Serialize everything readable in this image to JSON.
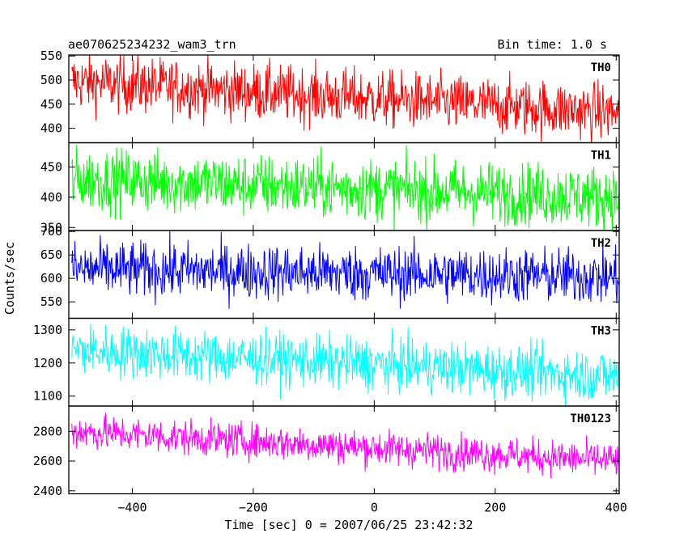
{
  "header": {
    "title": "ae070625234232_wam3_trn",
    "bin_time": "Bin time: 1.0 s"
  },
  "chart_data": {
    "type": "line",
    "xlabel": "Time [sec] 0 = 2007/06/25 23:42:32",
    "ylabel": "Counts/sec",
    "xlim": [
      -505,
      405
    ],
    "x_ticks": [
      -400,
      -200,
      0,
      200,
      400
    ],
    "x_tick_labels": [
      "−400",
      "−200",
      "0",
      "200",
      "400"
    ],
    "x_range": [
      -500,
      405
    ],
    "bin_time_s": 1.0,
    "panels": [
      {
        "name": "TH0",
        "color": "#ff0000",
        "ylim": [
          370,
          552
        ],
        "yticks": [
          400,
          450,
          500,
          550
        ],
        "mean_start": 497,
        "mean_end": 432,
        "noise": 30
      },
      {
        "name": "TH1",
        "color": "#00ff00",
        "ylim": [
          345,
          490
        ],
        "yticks": [
          350,
          400,
          450
        ],
        "mean_start": 430,
        "mean_end": 400,
        "noise": 26
      },
      {
        "name": "TH2",
        "color": "#0000ff",
        "ylim": [
          515,
          702
        ],
        "yticks": [
          550,
          600,
          650,
          700
        ],
        "mean_start": 620,
        "mean_end": 603,
        "noise": 30
      },
      {
        "name": "TH3",
        "color": "#00ffff",
        "ylim": [
          1070,
          1335
        ],
        "yticks": [
          1100,
          1200,
          1300
        ],
        "mean_start": 1240,
        "mean_end": 1160,
        "noise": 40
      },
      {
        "name": "TH0123",
        "color": "#ff00ff",
        "ylim": [
          2380,
          2970
        ],
        "yticks": [
          2400,
          2600,
          2800
        ],
        "mean_start": 2800,
        "mean_end": 2600,
        "noise": 60
      }
    ]
  }
}
